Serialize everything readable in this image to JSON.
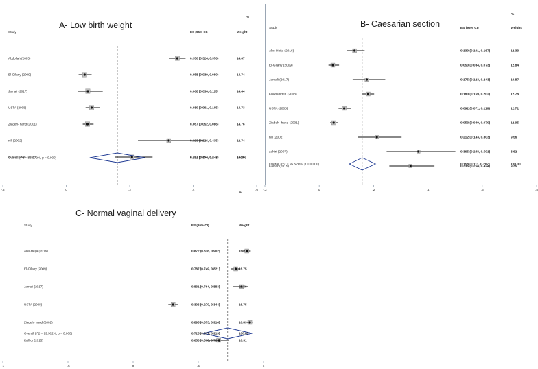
{
  "chart_data": [
    {
      "type": "forest",
      "title": "A- Low birth weight",
      "header": {
        "study": "Study",
        "es": "ES (95% CI)",
        "weight_pct": "%",
        "weight": "Weight"
      },
      "xlim": [
        -0.2,
        0.6
      ],
      "ticks": [
        {
          "v": -0.2,
          "label": "-.2"
        },
        {
          "v": 0,
          "label": "0"
        },
        {
          "v": 0.2,
          "label": ".2"
        },
        {
          "v": 0.4,
          "label": ".4"
        },
        {
          "v": 0.6,
          "label": ".6"
        }
      ],
      "reference_line": 0.161,
      "studies": [
        {
          "name": "Abdollah (2003)",
          "es": 0.35,
          "lo": 0.324,
          "hi": 0.376,
          "es_text": "0.350 (0.324, 0.376)",
          "weight": "14.67"
        },
        {
          "name": "El-Gilany (2009)",
          "es": 0.058,
          "lo": 0.039,
          "hi": 0.08,
          "es_text": "0.058 (0.039, 0.080)",
          "weight": "14.74"
        },
        {
          "name": "Jamali (2017)",
          "es": 0.068,
          "lo": 0.036,
          "hi": 0.115,
          "es_text": "0.068 (0.036, 0.115)",
          "weight": "14.44"
        },
        {
          "name": "USTA (2008)",
          "es": 0.08,
          "lo": 0.061,
          "hi": 0.105,
          "es_text": "0.080 (0.061, 0.105)",
          "weight": "14.73"
        },
        {
          "name": "Ziadeh- hand (2001)",
          "es": 0.067,
          "lo": 0.052,
          "hi": 0.086,
          "es_text": "0.067 (0.052, 0.086)",
          "weight": "14.76"
        },
        {
          "name": "nili (2002)",
          "es": 0.323,
          "lo": 0.226,
          "hi": 0.435,
          "es_text": "0.323 (0.226, 0.435)",
          "weight": "12.74"
        },
        {
          "name": "Nusrat Shah (2011)",
          "es": 0.207,
          "lo": 0.154,
          "hi": 0.272,
          "es_text": "0.207 (0.154, 0.272)",
          "weight": "13.90"
        }
      ],
      "overall": {
        "label": "Overall  (I^2 = 98.572%, p = 0.000)",
        "es": 0.161,
        "lo": 0.074,
        "hi": 0.248,
        "es_text": "0.161 (0.074, 0.248)",
        "weight": "100.00"
      }
    },
    {
      "type": "forest",
      "title": "B- Caesarian section",
      "header": {
        "study": "Study",
        "es": "ES (95% CI)",
        "weight_pct": "%",
        "weight": "Weight"
      },
      "xlim": [
        -0.2,
        0.8
      ],
      "ticks": [
        {
          "v": -0.2,
          "label": "-.2"
        },
        {
          "v": 0,
          "label": "0"
        },
        {
          "v": 0.2,
          "label": ".2"
        },
        {
          "v": 0.4,
          "label": ".4"
        },
        {
          "v": 0.6,
          "label": ".6"
        },
        {
          "v": 0.8,
          "label": ".8"
        }
      ],
      "reference_line": 0.158,
      "studies": [
        {
          "name": "Abu-Heija (2016)",
          "es": 0.13,
          "lo": 0.101,
          "hi": 0.167,
          "es_text": "0.130 (0.101, 0.167)",
          "weight": "12.33"
        },
        {
          "name": "El-Gilany (2009)",
          "es": 0.05,
          "lo": 0.034,
          "hi": 0.073,
          "es_text": "0.050 (0.034, 0.073)",
          "weight": "12.84"
        },
        {
          "name": "Jamali (2017)",
          "es": 0.175,
          "lo": 0.123,
          "hi": 0.243,
          "es_text": "0.175 (0.123, 0.243)",
          "weight": "10.87"
        },
        {
          "name": "Khooshideh (2008)",
          "es": 0.18,
          "lo": 0.159,
          "hi": 0.202,
          "es_text": "0.180 (0.159, 0.202)",
          "weight": "12.78"
        },
        {
          "name": "USTA (2008)",
          "es": 0.092,
          "lo": 0.071,
          "hi": 0.116,
          "es_text": "0.092 (0.071, 0.116)",
          "weight": "12.71"
        },
        {
          "name": "Ziadeh- hand (2001)",
          "es": 0.053,
          "lo": 0.04,
          "hi": 0.07,
          "es_text": "0.053 (0.040, 0.070)",
          "weight": "12.95"
        },
        {
          "name": "nili (2002)",
          "es": 0.212,
          "lo": 0.143,
          "hi": 0.303,
          "es_text": "0.212 (0.143, 0.303)",
          "weight": "9.56"
        },
        {
          "name": "zahiri (2007)",
          "es": 0.365,
          "lo": 0.248,
          "hi": 0.501,
          "es_text": "0.365 (0.248, 0.501)",
          "weight": "8.62"
        },
        {
          "name": "Kalhor (2015)",
          "es": 0.336,
          "lo": 0.258,
          "hi": 0.424,
          "es_text": "0.336 (0.258, 0.424)",
          "weight": "9.35"
        }
      ],
      "overall": {
        "label": "Overall  (I^2 = 95.528%, p = 0.000)",
        "es": 0.158,
        "lo": 0.111,
        "hi": 0.207,
        "es_text": "0.158 (0.111, 0.207)",
        "weight": "100.00"
      }
    },
    {
      "type": "forest",
      "title": "C- Normal vaginal delivery",
      "header": {
        "study": "Study",
        "es": "ES (95% CI)",
        "weight_pct": "%",
        "weight": "Weight"
      },
      "xlim": [
        -1,
        1
      ],
      "ticks": [
        {
          "v": -1,
          "label": "-1"
        },
        {
          "v": -0.5,
          "label": "-.5"
        },
        {
          "v": 0,
          "label": "0"
        },
        {
          "v": 0.5,
          "label": ".5"
        },
        {
          "v": 1,
          "label": "1"
        }
      ],
      "reference_line": 0.725,
      "studies": [
        {
          "name": "Abu-Heija (2016)",
          "es": 0.872,
          "lo": 0.836,
          "hi": 0.902,
          "es_text": "0.872 (0.836, 0.902)",
          "weight": "16.77"
        },
        {
          "name": "El-Gilany (2009)",
          "es": 0.787,
          "lo": 0.749,
          "hi": 0.821,
          "es_text": "0.787 (0.749, 0.821)",
          "weight": "16.75"
        },
        {
          "name": "Jamali (2017)",
          "es": 0.831,
          "lo": 0.764,
          "hi": 0.883,
          "es_text": "0.831 (0.764, 0.883)",
          "weight": "16.56"
        },
        {
          "name": "USTA (2008)",
          "es": 0.306,
          "lo": 0.27,
          "hi": 0.344,
          "es_text": "0.306 (0.270, 0.344)",
          "weight": "16.75"
        },
        {
          "name": "Ziadeh- hand (2001)",
          "es": 0.895,
          "lo": 0.873,
          "hi": 0.914,
          "es_text": "0.895 (0.873, 0.914)",
          "weight": "16.83"
        },
        {
          "name": "Kalhor (2015)",
          "es": 0.656,
          "lo": 0.568,
          "hi": 0.734,
          "es_text": "0.656 (0.568, 0.734)",
          "weight": "16.31"
        }
      ],
      "overall": {
        "label": "Overall  (I^2 = 99.362%, p = 0.000)",
        "es": 0.725,
        "lo": 0.537,
        "hi": 0.913,
        "es_text": "0.725 (0.537, 0.913)",
        "weight": "100.00"
      }
    }
  ],
  "colors": {
    "axis": "#9aa6b4",
    "ink": "#111111",
    "dashed": "#666666"
  }
}
